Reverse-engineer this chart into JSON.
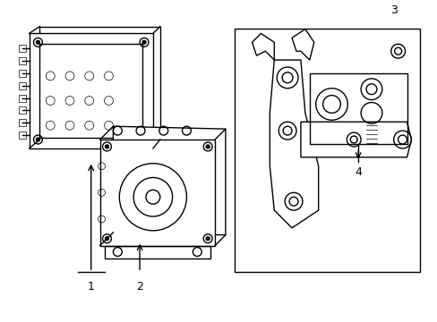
{
  "bg_color": "#ffffff",
  "line_color": "#000000",
  "line_width": 1.0,
  "thin_line": 0.5,
  "label_1": "1",
  "label_2": "2",
  "label_3": "3",
  "label_4": "4",
  "font_size": 9,
  "fig_width": 4.89,
  "fig_height": 3.6,
  "dpi": 100
}
